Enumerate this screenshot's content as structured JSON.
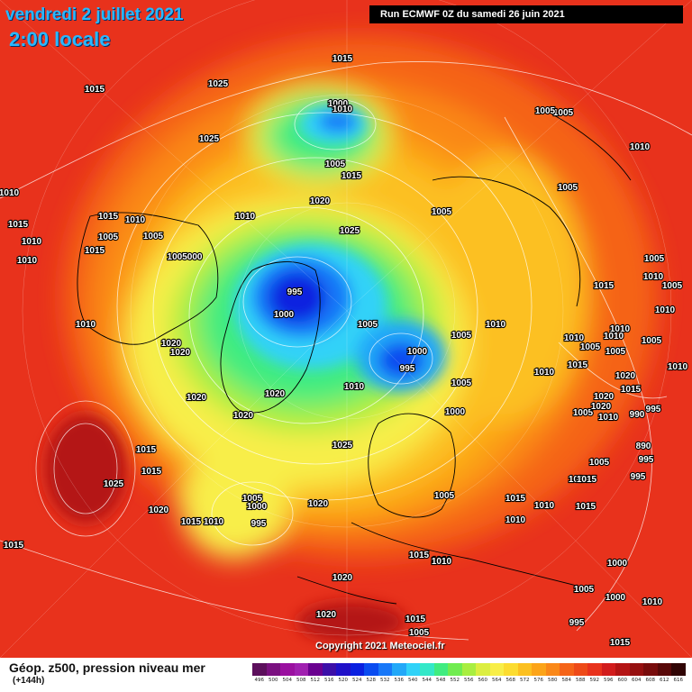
{
  "header": {
    "date": "vendredi 2 juillet 2021",
    "time": "2:00 locale",
    "run": "Run ECMWF 0Z du samedi 26 juin 2021"
  },
  "footer": {
    "parameter": "Géop. z500, pression niveau mer",
    "lead_time": "(+144h)",
    "copyright": "Copyright 2021 Meteociel.fr"
  },
  "colors": {
    "background_high": "#e8321c",
    "ridge": "#f56418",
    "mid": "#fdc21e",
    "low_trough": "#66e060",
    "deep_low": "#0a1fd8",
    "coastline": "#000000",
    "isobar": "#ffffff"
  },
  "legend": {
    "values": [
      "496",
      "500",
      "504",
      "508",
      "512",
      "516",
      "520",
      "524",
      "528",
      "532",
      "536",
      "540",
      "544",
      "548",
      "552",
      "556",
      "560",
      "564",
      "568",
      "572",
      "576",
      "580",
      "584",
      "588",
      "592",
      "596",
      "600",
      "604",
      "608",
      "612",
      "616"
    ],
    "colors": [
      "#5c0f5c",
      "#7a1080",
      "#9a10a0",
      "#a020b0",
      "#6a0090",
      "#3c0fa8",
      "#2010c8",
      "#0a20e0",
      "#0a4cf0",
      "#1878f8",
      "#22a8f8",
      "#30d2f8",
      "#34e8c8",
      "#40ec80",
      "#70ec50",
      "#a8ee40",
      "#dcee40",
      "#f8ee48",
      "#fcdc30",
      "#fcc020",
      "#fca418",
      "#fa8818",
      "#f56418",
      "#ee4a18",
      "#e8321c",
      "#d21c1c",
      "#b41414",
      "#961010",
      "#780c0c",
      "#580808",
      "#300404"
    ]
  },
  "pressure_labels": [
    {
      "text": "1015"
    },
    {
      "text": "1025"
    },
    {
      "text": "1015"
    },
    {
      "text": "1000"
    },
    {
      "text": "1010"
    },
    {
      "text": "1005"
    },
    {
      "text": "1025"
    },
    {
      "text": "1005"
    },
    {
      "text": "1015"
    },
    {
      "text": "1010"
    },
    {
      "text": "1005"
    },
    {
      "text": "1010"
    },
    {
      "text": "1020"
    },
    {
      "text": "1005"
    },
    {
      "text": "1010"
    },
    {
      "text": "1015"
    },
    {
      "text": "1015"
    },
    {
      "text": "1010"
    },
    {
      "text": "1005"
    },
    {
      "text": "1005"
    },
    {
      "text": "1010"
    },
    {
      "text": "1025"
    },
    {
      "text": "1015"
    },
    {
      "text": "1005000"
    },
    {
      "text": "1010"
    },
    {
      "text": "995"
    },
    {
      "text": "1000"
    },
    {
      "text": "1010"
    },
    {
      "text": "1005"
    },
    {
      "text": "1005"
    },
    {
      "text": "1000"
    },
    {
      "text": "995"
    },
    {
      "text": "1010"
    },
    {
      "text": "1005"
    },
    {
      "text": "1020"
    },
    {
      "text": "1020"
    },
    {
      "text": "1020"
    },
    {
      "text": "1020"
    },
    {
      "text": "1010"
    },
    {
      "text": "1005"
    },
    {
      "text": "1000"
    },
    {
      "text": "1020"
    },
    {
      "text": "1025"
    },
    {
      "text": "1015"
    },
    {
      "text": "1015"
    },
    {
      "text": "1025"
    },
    {
      "text": "1020"
    },
    {
      "text": "1005"
    },
    {
      "text": "1000"
    },
    {
      "text": "995"
    },
    {
      "text": "1020"
    },
    {
      "text": "1015"
    },
    {
      "text": "1010"
    },
    {
      "text": "1005"
    },
    {
      "text": "1015"
    },
    {
      "text": "1010"
    },
    {
      "text": "1010"
    },
    {
      "text": "1015"
    },
    {
      "text": "1010"
    },
    {
      "text": "1020"
    },
    {
      "text": "1015"
    },
    {
      "text": "1010"
    },
    {
      "text": "1005"
    },
    {
      "text": "1000"
    },
    {
      "text": "1000"
    },
    {
      "text": "1010"
    },
    {
      "text": "995"
    },
    {
      "text": "1005"
    },
    {
      "text": "1010"
    },
    {
      "text": "1015"
    },
    {
      "text": "1010"
    },
    {
      "text": "1005"
    },
    {
      "text": "1010"
    },
    {
      "text": "1005"
    },
    {
      "text": "1010"
    },
    {
      "text": "1020"
    },
    {
      "text": "1015"
    },
    {
      "text": "1020"
    },
    {
      "text": "1010"
    },
    {
      "text": "990"
    },
    {
      "text": "995"
    },
    {
      "text": "890"
    },
    {
      "text": "1005"
    },
    {
      "text": "995"
    },
    {
      "text": "1010"
    },
    {
      "text": "1015"
    },
    {
      "text": "995"
    },
    {
      "text": "1010"
    },
    {
      "text": "1005"
    },
    {
      "text": "1005"
    },
    {
      "text": "1010"
    },
    {
      "text": "1015"
    },
    {
      "text": "1010"
    },
    {
      "text": "1005"
    },
    {
      "text": "1020"
    },
    {
      "text": "1015"
    },
    {
      "text": "1005"
    },
    {
      "text": "1015"
    },
    {
      "text": "1020"
    },
    {
      "text": "1015"
    }
  ]
}
